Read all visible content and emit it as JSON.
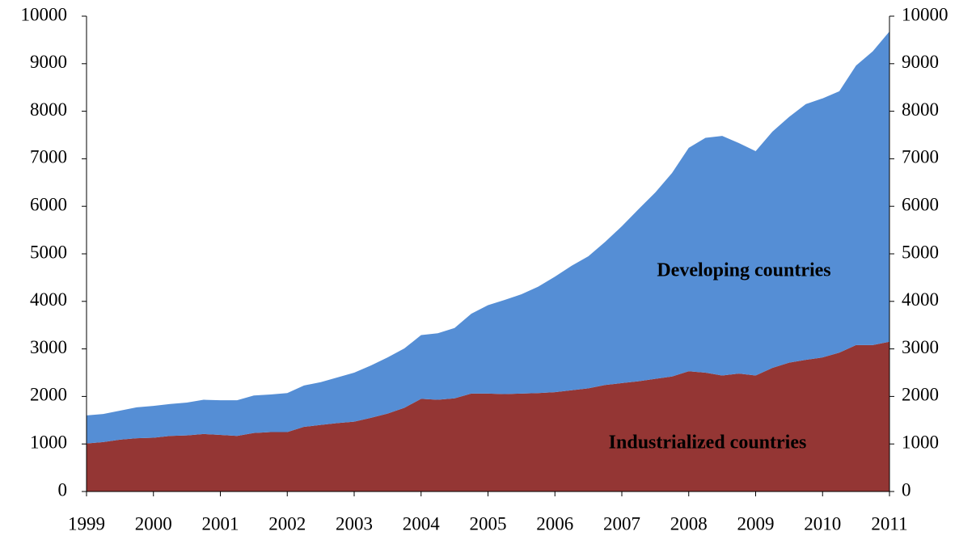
{
  "chart_data": {
    "type": "stacked_area",
    "x": [
      1999,
      1999.25,
      1999.5,
      1999.75,
      2000,
      2000.25,
      2000.5,
      2000.75,
      2001,
      2001.25,
      2001.5,
      2001.75,
      2002,
      2002.25,
      2002.5,
      2002.75,
      2003,
      2003.25,
      2003.5,
      2003.75,
      2004,
      2004.25,
      2004.5,
      2004.75,
      2005,
      2005.25,
      2005.5,
      2005.75,
      2006,
      2006.25,
      2006.5,
      2006.75,
      2007,
      2007.25,
      2007.5,
      2007.75,
      2008,
      2008.25,
      2008.5,
      2008.75,
      2009,
      2009.25,
      2009.5,
      2009.75,
      2010,
      2010.25,
      2010.5,
      2010.75,
      2011
    ],
    "series": [
      {
        "name": "Industrialized countries",
        "color": "#943634",
        "values": [
          1010,
          1040,
          1090,
          1120,
          1130,
          1170,
          1180,
          1210,
          1190,
          1170,
          1230,
          1250,
          1250,
          1360,
          1400,
          1440,
          1470,
          1550,
          1640,
          1760,
          1950,
          1930,
          1960,
          2060,
          2060,
          2050,
          2060,
          2070,
          2090,
          2130,
          2170,
          2240,
          2280,
          2320,
          2370,
          2420,
          2530,
          2500,
          2440,
          2480,
          2440,
          2600,
          2710,
          2770,
          2820,
          2920,
          3080,
          3080,
          3150
        ]
      },
      {
        "name": "Developing countries",
        "color": "#558ed5",
        "values": [
          590,
          590,
          610,
          650,
          670,
          670,
          690,
          720,
          730,
          750,
          790,
          790,
          820,
          870,
          900,
          960,
          1030,
          1100,
          1180,
          1250,
          1340,
          1400,
          1480,
          1680,
          1860,
          1980,
          2090,
          2240,
          2430,
          2620,
          2780,
          3010,
          3300,
          3620,
          3920,
          4280,
          4700,
          4940,
          5040,
          4850,
          4720,
          4970,
          5170,
          5380,
          5450,
          5500,
          5880,
          6180,
          6530
        ]
      }
    ],
    "xlim": [
      1999,
      2011
    ],
    "xticks": [
      1999,
      2000,
      2001,
      2002,
      2003,
      2004,
      2005,
      2006,
      2007,
      2008,
      2009,
      2010,
      2011
    ],
    "ylim": [
      0,
      10000
    ],
    "yticks": [
      0,
      1000,
      2000,
      3000,
      4000,
      5000,
      6000,
      7000,
      8000,
      9000,
      10000
    ],
    "y2lim": [
      0,
      10000
    ],
    "y2ticks": [
      0,
      1000,
      2000,
      3000,
      4000,
      5000,
      6000,
      7000,
      8000,
      9000,
      10000
    ],
    "grid": false
  }
}
